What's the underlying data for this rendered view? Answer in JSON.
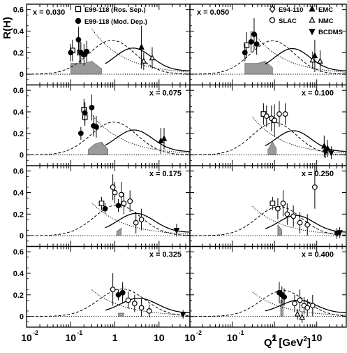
{
  "figure": {
    "ylabel": "R(H)",
    "xlabel_main": "Q",
    "xlabel_sup": "2",
    "xlabel_unit_open": " [GeV",
    "xlabel_unit_sup": "2",
    "xlabel_unit_close": "]",
    "x_ticks": [
      {
        "base": "10",
        "exp": "-2",
        "value": 0.01
      },
      {
        "base": "10",
        "exp": "-1",
        "value": 0.1
      },
      {
        "base": "1",
        "exp": "",
        "value": 1
      },
      {
        "base": "10",
        "exp": "",
        "value": 10
      }
    ],
    "y_ticks": [
      "0",
      "0.2",
      "0.4",
      "0.6"
    ],
    "legend": [
      {
        "marker": "open-square",
        "label": "E99-118 (Ros. Sep.)"
      },
      {
        "marker": "filled-circle",
        "label": "E99-118 (Mod. Dep.)"
      },
      {
        "marker": "open-diamond",
        "label": "E94-110"
      },
      {
        "marker": "open-circle",
        "label": "SLAC"
      },
      {
        "marker": "filled-triangle-up",
        "label": "EMC"
      },
      {
        "marker": "open-triangle-up",
        "label": "NMC"
      },
      {
        "marker": "filled-triangle-down",
        "label": "BCDMS"
      }
    ]
  },
  "chart_data": [
    {
      "type": "scatter",
      "label": "x = 0.030",
      "xscale": "log",
      "xlim": [
        0.01,
        50
      ],
      "ylim": [
        -0.1,
        0.65
      ],
      "series": [
        {
          "name": "E99-118 (Ros. Sep.)",
          "marker": "open-square",
          "points": [
            [
              0.11,
              0.22,
              0.1
            ],
            [
              0.16,
              0.2,
              0.1
            ]
          ]
        },
        {
          "name": "E99-118 (Mod. Dep.)",
          "marker": "filled-circle",
          "points": [
            [
              0.1,
              0.2,
              0.08
            ],
            [
              0.15,
              0.32,
              0.12
            ],
            [
              0.17,
              0.2,
              0.1
            ],
            [
              0.2,
              0.18,
              0.1
            ],
            [
              0.23,
              0.21,
              0.1
            ]
          ]
        },
        {
          "name": "NMC",
          "marker": "open-triangle-up",
          "points": [
            [
              4.5,
              0.12,
              0.08
            ],
            [
              7,
              0.15,
              0.1
            ]
          ]
        },
        {
          "name": "EMC",
          "marker": "filled-triangle-up",
          "points": [
            [
              4,
              0.25,
              0.2
            ]
          ]
        }
      ],
      "band": [
        [
          0.1,
          0.1
        ],
        [
          0.2,
          0.1
        ],
        [
          0.3,
          0.12
        ],
        [
          0.5,
          0.05
        ]
      ]
    },
    {
      "type": "scatter",
      "label": "x = 0.050",
      "xscale": "log",
      "xlim": [
        0.01,
        50
      ],
      "ylim": [
        -0.1,
        0.65
      ],
      "series": [
        {
          "name": "E99-118 (Ros. Sep.)",
          "marker": "open-square",
          "points": [
            [
              0.22,
              0.27,
              0.12
            ]
          ]
        },
        {
          "name": "E99-118 (Mod. Dep.)",
          "marker": "filled-circle",
          "points": [
            [
              0.2,
              0.2,
              0.08
            ],
            [
              0.28,
              0.3,
              0.1
            ],
            [
              0.33,
              0.37,
              0.15
            ],
            [
              0.38,
              0.28,
              0.1
            ]
          ]
        },
        {
          "name": "NMC",
          "marker": "open-triangle-up",
          "points": [
            [
              8,
              0.13,
              0.08
            ],
            [
              12,
              0.12,
              0.1
            ]
          ]
        },
        {
          "name": "EMC",
          "marker": "filled-triangle-up",
          "points": [
            [
              9,
              0.17,
              0.15
            ]
          ]
        }
      ],
      "band": [
        [
          0.2,
          0.1
        ],
        [
          0.4,
          0.1
        ],
        [
          0.6,
          0.12
        ],
        [
          0.9,
          0.06
        ]
      ]
    },
    {
      "type": "scatter",
      "label": "x = 0.075",
      "xscale": "log",
      "xlim": [
        0.01,
        50
      ],
      "ylim": [
        -0.1,
        0.65
      ],
      "series": [
        {
          "name": "E99-118 (Ros. Sep.)",
          "marker": "open-square",
          "points": [
            [
              0.2,
              0.42,
              0.1
            ],
            [
              0.21,
              0.35,
              0.08
            ]
          ]
        },
        {
          "name": "E99-118 (Mod. Dep.)",
          "marker": "filled-circle",
          "points": [
            [
              0.17,
              0.2,
              0.06
            ],
            [
              0.21,
              0.39,
              0.1
            ],
            [
              0.3,
              0.44,
              0.12
            ],
            [
              0.33,
              0.27,
              0.1
            ],
            [
              0.38,
              0.26,
              0.1
            ]
          ]
        },
        {
          "name": "EMC",
          "marker": "filled-triangle-up",
          "points": [
            [
              11,
              0.13,
              0.12
            ],
            [
              13,
              0.15,
              0.1
            ]
          ]
        }
      ],
      "band": [
        [
          0.25,
          0.05
        ],
        [
          0.35,
          0.1
        ],
        [
          0.5,
          0.12
        ],
        [
          0.7,
          0.05
        ]
      ]
    },
    {
      "type": "scatter",
      "label": "x = 0.100",
      "xscale": "log",
      "xlim": [
        0.01,
        50
      ],
      "ylim": [
        -0.1,
        0.65
      ],
      "series": [
        {
          "name": "E99-118 (Ros. Sep.)",
          "marker": "open-square",
          "points": [
            [
              0.55,
              0.38,
              0.1
            ]
          ]
        },
        {
          "name": "SLAC",
          "marker": "open-circle",
          "points": [
            [
              0.65,
              0.36,
              0.1
            ],
            [
              0.85,
              0.34,
              0.12
            ],
            [
              1.0,
              0.32,
              0.15
            ],
            [
              1.3,
              0.38,
              0.12
            ],
            [
              1.8,
              0.38,
              0.1
            ]
          ]
        },
        {
          "name": "EMC",
          "marker": "filled-triangle-up",
          "points": [
            [
              15,
              0.08,
              0.1
            ],
            [
              18,
              0.06,
              0.08
            ]
          ]
        },
        {
          "name": "BCDMS",
          "marker": "filled-triangle-down",
          "points": [
            [
              16,
              0.03,
              0.06
            ],
            [
              22,
              0.02,
              0.06
            ]
          ]
        }
      ],
      "band": [
        [
          0.7,
          0.05
        ],
        [
          0.9,
          0.12
        ],
        [
          1.1,
          0.06
        ]
      ]
    },
    {
      "type": "scatter",
      "label": "x = 0.175",
      "xscale": "log",
      "xlim": [
        0.01,
        50
      ],
      "ylim": [
        -0.1,
        0.65
      ],
      "series": [
        {
          "name": "E99-118 (Ros. Sep.)",
          "marker": "open-square",
          "points": [
            [
              0.5,
              0.3,
              0.06
            ]
          ]
        },
        {
          "name": "SLAC",
          "marker": "open-circle",
          "points": [
            [
              0.9,
              0.45,
              0.12
            ],
            [
              1.0,
              0.4,
              0.1
            ],
            [
              1.4,
              0.38,
              0.12
            ],
            [
              1.6,
              0.3,
              0.1
            ],
            [
              2.2,
              0.32,
              0.1
            ],
            [
              3.0,
              0.12,
              0.1
            ],
            [
              4.0,
              0.15,
              0.1
            ]
          ]
        },
        {
          "name": "E99-118 (Mod. Dep.)",
          "marker": "filled-circle",
          "points": [
            [
              0.6,
              0.25,
              0.05
            ],
            [
              1.2,
              0.28,
              0.06
            ]
          ]
        },
        {
          "name": "BCDMS",
          "marker": "filled-triangle-down",
          "points": [
            [
              25,
              0.05,
              0.06
            ]
          ]
        }
      ],
      "band": [
        [
          1.1,
          0.04
        ],
        [
          1.4,
          0.07
        ]
      ]
    },
    {
      "type": "scatter",
      "label": "x = 0.250",
      "xscale": "log",
      "xlim": [
        0.01,
        50
      ],
      "ylim": [
        -0.1,
        0.65
      ],
      "series": [
        {
          "name": "E99-118 (Ros. Sep.)",
          "marker": "open-square",
          "points": [
            [
              0.9,
              0.3,
              0.06
            ]
          ]
        },
        {
          "name": "SLAC",
          "marker": "open-circle",
          "points": [
            [
              1.2,
              0.25,
              0.1
            ],
            [
              1.6,
              0.3,
              0.12
            ],
            [
              2.0,
              0.2,
              0.1
            ],
            [
              2.8,
              0.18,
              0.1
            ],
            [
              4.0,
              0.12,
              0.1
            ],
            [
              6.0,
              0.1,
              0.1
            ],
            [
              9.0,
              0.45,
              0.2
            ]
          ]
        },
        {
          "name": "BCDMS",
          "marker": "filled-triangle-down",
          "points": [
            [
              30,
              0.02,
              0.05
            ],
            [
              35,
              0.03,
              0.05
            ]
          ]
        }
      ],
      "band": [
        [
          1.2,
          0.1
        ],
        [
          1.5,
          0.05
        ]
      ]
    },
    {
      "type": "scatter",
      "label": "x = 0.325",
      "xscale": "log",
      "xlim": [
        0.01,
        50
      ],
      "ylim": [
        -0.1,
        0.65
      ],
      "series": [
        {
          "name": "SLAC",
          "marker": "open-circle",
          "points": [
            [
              0.9,
              0.25,
              0.15
            ],
            [
              1.5,
              0.22,
              0.1
            ],
            [
              2.0,
              0.15,
              0.08
            ],
            [
              2.8,
              0.12,
              0.08
            ],
            [
              4.0,
              0.08,
              0.08
            ],
            [
              6.0,
              0.05,
              0.06
            ]
          ]
        },
        {
          "name": "E99-118 (Mod. Dep.)",
          "marker": "filled-circle",
          "points": [
            [
              1.2,
              0.2,
              0.05
            ],
            [
              1.5,
              0.22,
              0.06
            ]
          ]
        },
        {
          "name": "BCDMS",
          "marker": "filled-triangle-down",
          "points": [
            [
              35,
              0.02,
              0.04
            ]
          ]
        }
      ],
      "band": [
        [
          1.2,
          0.03
        ],
        [
          1.6,
          0.03
        ]
      ]
    },
    {
      "type": "scatter",
      "label": "x = 0.400",
      "xscale": "log",
      "xlim": [
        0.01,
        50
      ],
      "ylim": [
        -0.1,
        0.65
      ],
      "series": [
        {
          "name": "E99-118 (Mod. Dep.)",
          "marker": "filled-circle",
          "points": [
            [
              1.3,
              0.22,
              0.1
            ],
            [
              1.5,
              0.2,
              0.08
            ],
            [
              1.7,
              0.18,
              0.08
            ]
          ]
        },
        {
          "name": "SLAC",
          "marker": "open-circle",
          "points": [
            [
              3.0,
              0.12,
              0.08
            ],
            [
              4.0,
              0.15,
              0.1
            ],
            [
              5.0,
              0.1,
              0.08
            ],
            [
              6.0,
              0.08,
              0.08
            ],
            [
              8.0,
              0.1,
              0.1
            ]
          ]
        },
        {
          "name": "NMC",
          "marker": "open-triangle-up",
          "points": [
            [
              3.5,
              0.02,
              0.05
            ],
            [
              4.5,
              -0.01,
              0.05
            ]
          ]
        }
      ],
      "band": [
        [
          1.4,
          0.15
        ],
        [
          1.6,
          0.15
        ]
      ]
    }
  ]
}
